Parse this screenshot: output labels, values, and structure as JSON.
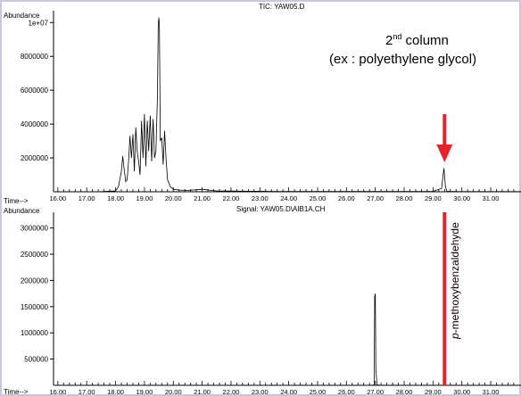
{
  "chart_data": [
    {
      "type": "line",
      "title": "TIC: YAW05.D",
      "ylabel": "Abundance",
      "xlabel": "Time-->",
      "y_ticks": [
        "1e+07",
        "8000000",
        "6000000",
        "4000000",
        "2000000"
      ],
      "x_ticks": [
        "16.00",
        "17.00",
        "18.00",
        "19.00",
        "20.00",
        "21.00",
        "22.00",
        "23.00",
        "24.00",
        "25.00",
        "26.00",
        "27.00",
        "28.00",
        "29.00",
        "30.00",
        "31.00"
      ],
      "xlim": [
        15.85,
        32.05
      ],
      "ylim": [
        0,
        10700000
      ],
      "series": [
        {
          "x": [
            16.0,
            16.5,
            17.0,
            17.5,
            18.0,
            18.1,
            18.2,
            18.25,
            18.3,
            18.35,
            18.4,
            18.45,
            18.5,
            18.55,
            18.6,
            18.65,
            18.7,
            18.75,
            18.8,
            18.85,
            18.9,
            18.95,
            19.0,
            19.05,
            19.1,
            19.15,
            19.2,
            19.25,
            19.3,
            19.35,
            19.4,
            19.45,
            19.48,
            19.5,
            19.52,
            19.55,
            19.6,
            19.65,
            19.7,
            19.75,
            19.8,
            19.9,
            20.0,
            20.2,
            20.5,
            21.0,
            21.5,
            22.0,
            22.5,
            23.0,
            23.5,
            24.0,
            25.0,
            26.0,
            27.0,
            28.0,
            29.0,
            29.3,
            29.38,
            29.43,
            29.48,
            29.6,
            30.0,
            30.5,
            31.0,
            31.5,
            32.0
          ],
          "y": [
            0,
            0,
            0,
            10000,
            50000,
            300000,
            1200000,
            2100000,
            1300000,
            600000,
            700000,
            1800000,
            3300000,
            2000000,
            3400000,
            1200000,
            3800000,
            2400000,
            1800000,
            1000000,
            4200000,
            2000000,
            4600000,
            1500000,
            4200000,
            2400000,
            4500000,
            1800000,
            4300000,
            2000000,
            2400000,
            5500000,
            9900000,
            10300000,
            9700000,
            3000000,
            3200000,
            1600000,
            3600000,
            2000000,
            700000,
            300000,
            150000,
            100000,
            80000,
            150000,
            50000,
            40000,
            30000,
            30000,
            20000,
            20000,
            20000,
            20000,
            20000,
            20000,
            20000,
            200000,
            1400000,
            300000,
            30000,
            20000,
            10000,
            10000,
            10000,
            10000,
            10000
          ]
        }
      ]
    },
    {
      "type": "line",
      "title": "Signal: YAW05.D\\AIB1A.CH",
      "ylabel": "Abundance",
      "xlabel": "Time-->",
      "y_ticks": [
        "3000000",
        "2500000",
        "2000000",
        "1500000",
        "1000000",
        "500000"
      ],
      "x_ticks": [
        "16.00",
        "17.00",
        "18.00",
        "19.00",
        "20.00",
        "21.00",
        "22.00",
        "23.00",
        "24.00",
        "25.00",
        "26.00",
        "27.00",
        "28.00",
        "29.00",
        "30.00",
        "31.00"
      ],
      "xlim": [
        15.85,
        32.05
      ],
      "ylim": [
        0,
        3300000
      ],
      "series": [
        {
          "x": [
            16.0,
            20.0,
            24.0,
            26.5,
            26.9,
            26.96,
            26.98,
            27.0,
            27.02,
            27.06,
            27.2,
            28.0,
            29.0,
            30.0,
            31.0,
            32.0
          ],
          "y": [
            0,
            0,
            0,
            0,
            0,
            10000,
            1700000,
            1750000,
            300000,
            10000,
            0,
            0,
            0,
            0,
            0,
            0
          ]
        }
      ]
    }
  ],
  "annotations": {
    "column_superscript": "nd",
    "column_title": "2 column",
    "stationary_phase": "(ex : polyethylene glycol)",
    "compound_label": "p-methoxybenzaldehyde",
    "marker_time": 29.4,
    "colors": {
      "marker": "#e8222b",
      "trace": "#000000",
      "frame": "#c8c8dc"
    }
  }
}
